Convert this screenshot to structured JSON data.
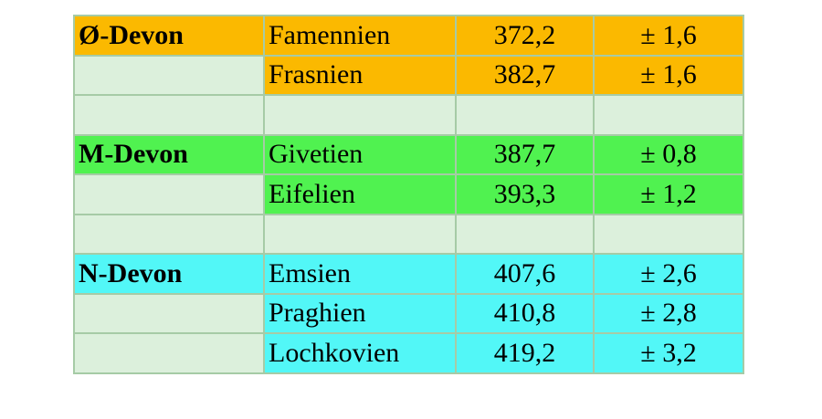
{
  "table": {
    "groups": [
      {
        "name": "Ø-Devon",
        "color": "#fbb900",
        "stages": [
          {
            "name": "Famennien",
            "age": "372,2",
            "error": "± 1,6"
          },
          {
            "name": "Frasnien",
            "age": "382,7",
            "error": "± 1,6"
          }
        ]
      },
      {
        "name": "M-Devon",
        "color": "#50f250",
        "stages": [
          {
            "name": "Givetien",
            "age": "387,7",
            "error": "± 0,8"
          },
          {
            "name": "Eifelien",
            "age": "393,3",
            "error": "± 1,2"
          }
        ]
      },
      {
        "name": "N-Devon",
        "color": "#52f7f7",
        "stages": [
          {
            "name": "Emsien",
            "age": "407,6",
            "error": "± 2,6"
          },
          {
            "name": "Praghien",
            "age": "410,8",
            "error": "± 2,8"
          },
          {
            "name": "Lochkovien",
            "age": "419,2",
            "error": "± 3,2"
          }
        ]
      }
    ]
  }
}
